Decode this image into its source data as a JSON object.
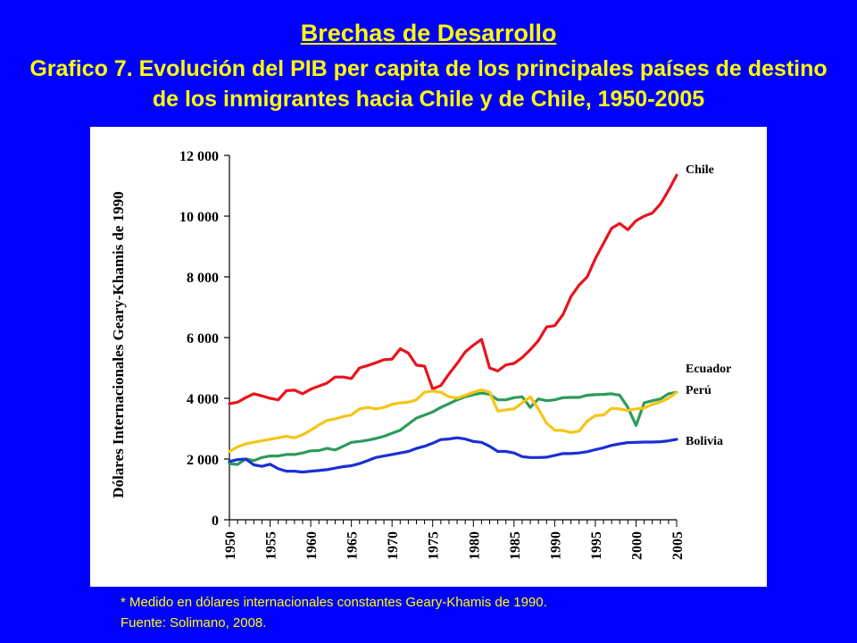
{
  "slide": {
    "title": "Brechas de Desarrollo",
    "chart_title_line1": "Grafico 7. Evolución del PIB per capita de los principales países de destino",
    "chart_title_line2": "de los inmigrantes hacia Chile y de Chile, 1950-2005",
    "footnote_line1": "* Medido en dólares internacionales constantes Geary-Khamis de 1990.",
    "footnote_line2": "Fuente: Solimano, 2008."
  },
  "chart_data": {
    "type": "line",
    "title": "",
    "xlabel": "",
    "ylabel": "Dólares Internacionales Geary-Khamis de 1990",
    "xlim": [
      1950,
      2005
    ],
    "ylim": [
      0,
      12000
    ],
    "grid": false,
    "legend": "labels at right end of each line",
    "x_ticks": [
      1950,
      1955,
      1960,
      1965,
      1970,
      1975,
      1980,
      1985,
      1990,
      1995,
      2000,
      2005
    ],
    "x_tick_labels": [
      "1950",
      "1955",
      "1960",
      "1965",
      "1970",
      "1975",
      "1980",
      "1985",
      "1990",
      "1995",
      "2000",
      "2005"
    ],
    "y_ticks": [
      0,
      2000,
      4000,
      6000,
      8000,
      10000,
      12000
    ],
    "y_tick_labels": [
      "0",
      "2 000",
      "4 000",
      "6 000",
      "8 000",
      "10 000",
      "12 000"
    ],
    "x": [
      1950,
      1951,
      1952,
      1953,
      1954,
      1955,
      1956,
      1957,
      1958,
      1959,
      1960,
      1961,
      1962,
      1963,
      1964,
      1965,
      1966,
      1967,
      1968,
      1969,
      1970,
      1971,
      1972,
      1973,
      1974,
      1975,
      1976,
      1977,
      1978,
      1979,
      1980,
      1981,
      1982,
      1983,
      1984,
      1985,
      1986,
      1987,
      1988,
      1989,
      1990,
      1991,
      1992,
      1993,
      1994,
      1995,
      1996,
      1997,
      1998,
      1999,
      2000,
      2001,
      2002,
      2003,
      2004,
      2005
    ],
    "series": [
      {
        "name": "Chile",
        "color": "#e8141c",
        "values": [
          3820,
          3870,
          4020,
          4150,
          4080,
          4000,
          3950,
          4250,
          4270,
          4150,
          4300,
          4400,
          4500,
          4700,
          4700,
          4650,
          5000,
          5080,
          5170,
          5270,
          5290,
          5630,
          5490,
          5090,
          5060,
          4310,
          4420,
          4800,
          5150,
          5530,
          5750,
          5940,
          5000,
          4900,
          5100,
          5150,
          5340,
          5600,
          5900,
          6350,
          6390,
          6750,
          7350,
          7730,
          8000,
          8600,
          9100,
          9600,
          9760,
          9550,
          9850,
          10000,
          10100,
          10400,
          10850,
          11350
        ]
      },
      {
        "name": "Ecuador",
        "color": "#2e9b5a",
        "values": [
          1850,
          1820,
          2000,
          1950,
          2050,
          2100,
          2100,
          2150,
          2150,
          2200,
          2270,
          2280,
          2350,
          2300,
          2420,
          2550,
          2580,
          2620,
          2680,
          2750,
          2850,
          2950,
          3150,
          3350,
          3450,
          3550,
          3700,
          3820,
          3950,
          4050,
          4120,
          4170,
          4130,
          3950,
          3950,
          4020,
          4050,
          3700,
          3980,
          3920,
          3950,
          4020,
          4030,
          4030,
          4100,
          4120,
          4130,
          4150,
          4100,
          3700,
          3110,
          3850,
          3920,
          3980,
          4150,
          4200
        ]
      },
      {
        "name": "Perú",
        "color": "#f5c516",
        "values": [
          2250,
          2400,
          2500,
          2550,
          2600,
          2650,
          2700,
          2750,
          2700,
          2800,
          2950,
          3120,
          3270,
          3320,
          3400,
          3450,
          3650,
          3700,
          3650,
          3700,
          3800,
          3850,
          3870,
          3950,
          4200,
          4240,
          4200,
          4050,
          4010,
          4100,
          4200,
          4280,
          4200,
          3580,
          3620,
          3650,
          3850,
          4050,
          3650,
          3180,
          2950,
          2940,
          2870,
          2920,
          3250,
          3430,
          3450,
          3670,
          3650,
          3600,
          3650,
          3680,
          3800,
          3880,
          4000,
          4200
        ]
      },
      {
        "name": "Bolivia",
        "color": "#1a2fd2",
        "values": [
          1920,
          1980,
          2000,
          1810,
          1760,
          1830,
          1680,
          1600,
          1600,
          1570,
          1600,
          1620,
          1650,
          1700,
          1750,
          1780,
          1850,
          1950,
          2050,
          2100,
          2150,
          2200,
          2250,
          2350,
          2420,
          2520,
          2640,
          2660,
          2700,
          2660,
          2580,
          2550,
          2420,
          2250,
          2250,
          2200,
          2080,
          2050,
          2050,
          2060,
          2120,
          2180,
          2180,
          2200,
          2240,
          2310,
          2370,
          2450,
          2500,
          2540,
          2550,
          2560,
          2560,
          2570,
          2600,
          2650
        ]
      }
    ]
  }
}
